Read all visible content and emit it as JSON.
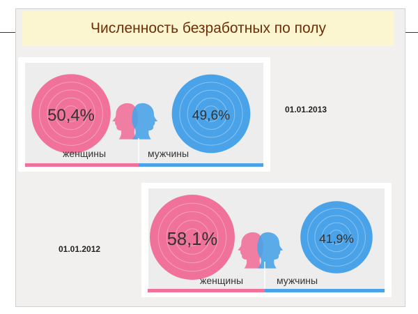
{
  "title": "Численность безработных по полу",
  "colors": {
    "women": "#f0719a",
    "men": "#4aa3e8"
  },
  "chart_data": [
    {
      "type": "pie",
      "date": "01.01.2013",
      "categories": [
        "женщины",
        "мужчины"
      ],
      "values": [
        50.4,
        49.6
      ],
      "labels": [
        "50,4%",
        "49,6%"
      ]
    },
    {
      "type": "pie",
      "date": "01.01.2012",
      "categories": [
        "женщины",
        "мужчины"
      ],
      "values": [
        58.1,
        41.9
      ],
      "labels": [
        "58,1%",
        "41,9%"
      ]
    }
  ]
}
